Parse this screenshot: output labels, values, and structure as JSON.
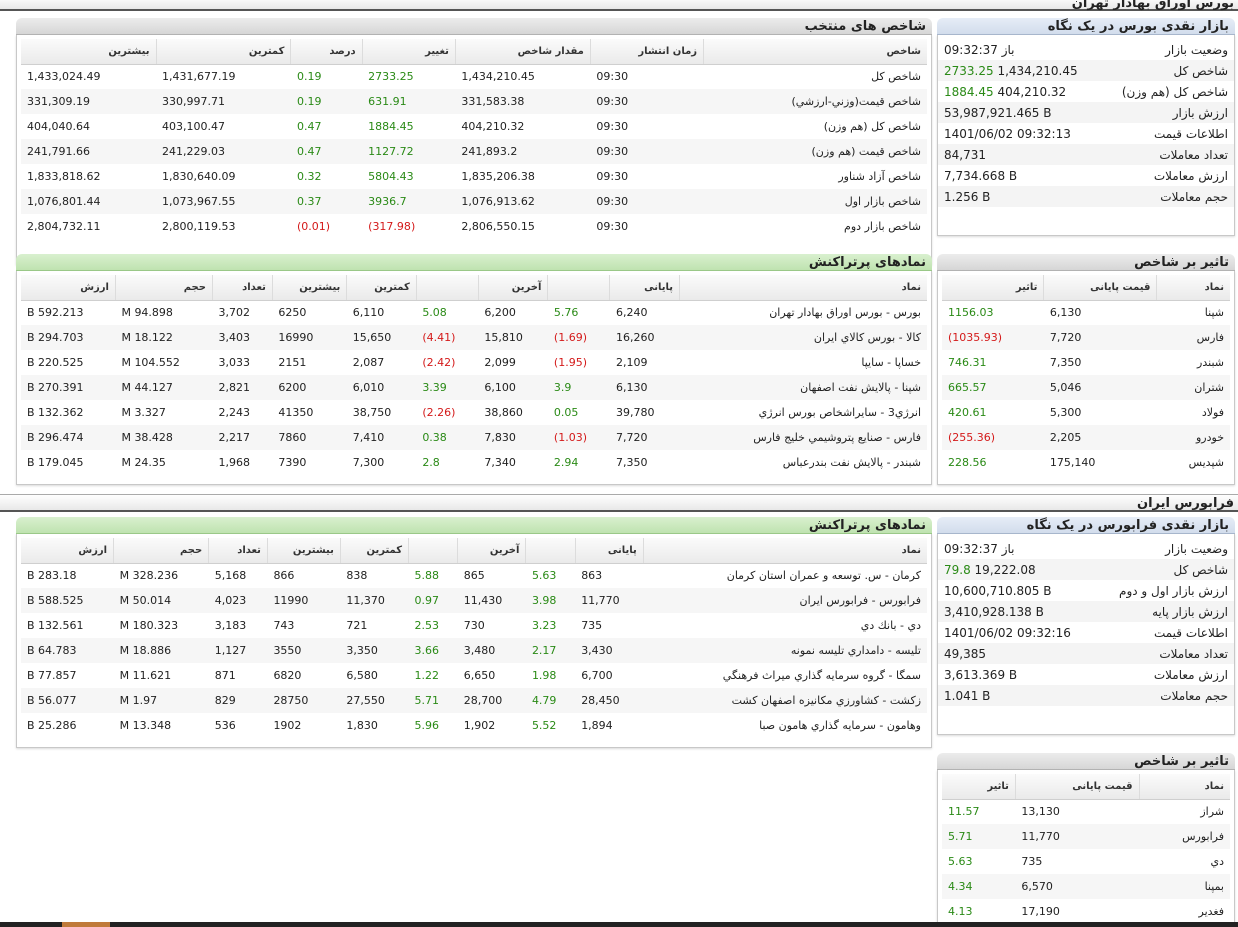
{
  "section_tehran": {
    "title": "بورس اوراق بهادار تهران"
  },
  "section_fara": {
    "title": "فرابورس ایران"
  },
  "tehran_glance": {
    "title": "بازار نقدی بورس در یک نگاه",
    "rows": [
      {
        "label": "وضعیت بازار",
        "value": "باز 09:32:37",
        "change": ""
      },
      {
        "label": "شاخص کل",
        "value": "1,434,210.45",
        "change": "2733.25"
      },
      {
        "label": "شاخص کل (هم وزن)",
        "value": "404,210.32",
        "change": "1884.45"
      },
      {
        "label": "ارزش بازار",
        "value": "53,987,921.465 B",
        "change": ""
      },
      {
        "label": "اطلاعات قیمت",
        "value": "1401/06/02 09:32:13",
        "change": ""
      },
      {
        "label": "تعداد معاملات",
        "value": "84,731",
        "change": ""
      },
      {
        "label": "ارزش معاملات",
        "value": "7,734.668 B",
        "change": ""
      },
      {
        "label": "حجم معاملات",
        "value": "1.256 B",
        "change": ""
      }
    ]
  },
  "selected_indices": {
    "title": "شاخص های منتخب",
    "headers": [
      "شاخص",
      "زمان انتشار",
      "مقدار شاخص",
      "تغییر",
      "درصد",
      "کمترین",
      "بیشترین"
    ],
    "rows": [
      {
        "name": "شاخص كل",
        "time": "09:30",
        "value": "1,434,210.45",
        "change": "2733.25",
        "percent": "0.19",
        "min": "1,431,677.19",
        "max": "1,433,024.49",
        "dir": "pos"
      },
      {
        "name": "شاخص قيمت(وزني-ارزشي)",
        "time": "09:30",
        "value": "331,583.38",
        "change": "631.91",
        "percent": "0.19",
        "min": "330,997.71",
        "max": "331,309.19",
        "dir": "pos"
      },
      {
        "name": "شاخص كل (هم وزن)",
        "time": "09:30",
        "value": "404,210.32",
        "change": "1884.45",
        "percent": "0.47",
        "min": "403,100.47",
        "max": "404,040.64",
        "dir": "pos"
      },
      {
        "name": "شاخص قيمت (هم وزن)",
        "time": "09:30",
        "value": "241,893.2",
        "change": "1127.72",
        "percent": "0.47",
        "min": "241,229.03",
        "max": "241,791.66",
        "dir": "pos"
      },
      {
        "name": "شاخص آزاد شناور",
        "time": "09:30",
        "value": "1,835,206.38",
        "change": "5804.43",
        "percent": "0.32",
        "min": "1,830,640.09",
        "max": "1,833,818.62",
        "dir": "pos"
      },
      {
        "name": "شاخص بازار اول",
        "time": "09:30",
        "value": "1,076,913.62",
        "change": "3936.7",
        "percent": "0.37",
        "min": "1,073,967.55",
        "max": "1,076,801.44",
        "dir": "pos"
      },
      {
        "name": "شاخص بازار دوم",
        "time": "09:30",
        "value": "2,806,550.15",
        "change": "(317.98)",
        "percent": "(0.01)",
        "min": "2,800,119.53",
        "max": "2,804,732.11",
        "dir": "neg"
      }
    ]
  },
  "tehran_impact": {
    "title": "تاثیر بر شاخص",
    "headers": [
      "نماد",
      "قیمت پایانی",
      "تاثیر"
    ],
    "rows": [
      {
        "symbol": "شپنا",
        "price": "6,130",
        "impact": "1156.03",
        "dir": "pos"
      },
      {
        "symbol": "فارس",
        "price": "7,720",
        "impact": "(1035.93)",
        "dir": "neg"
      },
      {
        "symbol": "شبندر",
        "price": "7,350",
        "impact": "746.31",
        "dir": "pos"
      },
      {
        "symbol": "شتران",
        "price": "5,046",
        "impact": "665.57",
        "dir": "pos"
      },
      {
        "symbol": "فولاد",
        "price": "5,300",
        "impact": "420.61",
        "dir": "pos"
      },
      {
        "symbol": "خودرو",
        "price": "2,205",
        "impact": "(255.36)",
        "dir": "neg"
      },
      {
        "symbol": "شپديس",
        "price": "175,140",
        "impact": "228.56",
        "dir": "pos"
      }
    ]
  },
  "tehran_top": {
    "title": "نمادهای پرتراکنش",
    "headers": [
      "نماد",
      "پایانی",
      "",
      "آخرین",
      "",
      "کمترین",
      "بیشترین",
      "تعداد",
      "حجم",
      "ارزش"
    ],
    "rows": [
      {
        "name": "بورس - بورس اوراق بهادار تهران",
        "close": "6,240",
        "close_pct": "5.76",
        "close_dir": "pos",
        "last": "6,200",
        "last_pct": "5.08",
        "last_dir": "pos",
        "min": "6,110",
        "max": "6250",
        "count": "3,702",
        "volume": "94.898 M",
        "value": "592.213 B"
      },
      {
        "name": "كالا - بورس كالاي ايران",
        "close": "16,260",
        "close_pct": "(1.69)",
        "close_dir": "neg",
        "last": "15,810",
        "last_pct": "(4.41)",
        "last_dir": "neg",
        "min": "15,650",
        "max": "16990",
        "count": "3,403",
        "volume": "18.122 M",
        "value": "294.703 B"
      },
      {
        "name": "خساپا - سايپا",
        "close": "2,109",
        "close_pct": "(1.95)",
        "close_dir": "neg",
        "last": "2,099",
        "last_pct": "(2.42)",
        "last_dir": "neg",
        "min": "2,087",
        "max": "2151",
        "count": "3,033",
        "volume": "104.552 M",
        "value": "220.525 B"
      },
      {
        "name": "شپنا - پالايش نفت اصفهان",
        "close": "6,130",
        "close_pct": "3.9",
        "close_dir": "pos",
        "last": "6,100",
        "last_pct": "3.39",
        "last_dir": "pos",
        "min": "6,010",
        "max": "6200",
        "count": "2,821",
        "volume": "44.127 M",
        "value": "270.391 B"
      },
      {
        "name": "انرژي3 - سايراشخاص بورس انرژي",
        "close": "39,780",
        "close_pct": "0.05",
        "close_dir": "pos",
        "last": "38,860",
        "last_pct": "(2.26)",
        "last_dir": "neg",
        "min": "38,750",
        "max": "41350",
        "count": "2,243",
        "volume": "3.327 M",
        "value": "132.362 B"
      },
      {
        "name": "فارس - صنايع پتروشيمي خليج فارس",
        "close": "7,720",
        "close_pct": "(1.03)",
        "close_dir": "neg",
        "last": "7,830",
        "last_pct": "0.38",
        "last_dir": "pos",
        "min": "7,410",
        "max": "7860",
        "count": "2,217",
        "volume": "38.428 M",
        "value": "296.474 B"
      },
      {
        "name": "شبندر - پالايش نفت بندرعباس",
        "close": "7,350",
        "close_pct": "2.94",
        "close_dir": "pos",
        "last": "7,340",
        "last_pct": "2.8",
        "last_dir": "pos",
        "min": "7,300",
        "max": "7390",
        "count": "1,968",
        "volume": "24.35 M",
        "value": "179.045 B"
      }
    ]
  },
  "fara_glance": {
    "title": "بازار نقدی فرابورس در یک نگاه",
    "rows": [
      {
        "label": "وضعیت بازار",
        "value": "باز 09:32:37",
        "change": ""
      },
      {
        "label": "شاخص کل",
        "value": "19,222.08",
        "change": "79.8"
      },
      {
        "label": "ارزش بازار اول و دوم",
        "value": "10,600,710.805 B",
        "change": ""
      },
      {
        "label": "ارزش بازار پایه",
        "value": "3,410,928.138 B",
        "change": ""
      },
      {
        "label": "اطلاعات قیمت",
        "value": "1401/06/02 09:32:16",
        "change": ""
      },
      {
        "label": "تعداد معاملات",
        "value": "49,385",
        "change": ""
      },
      {
        "label": "ارزش معاملات",
        "value": "3,613.369 B",
        "change": ""
      },
      {
        "label": "حجم معاملات",
        "value": "1.041 B",
        "change": ""
      }
    ]
  },
  "fara_top": {
    "title": "نمادهای پرتراکنش",
    "headers": [
      "نماد",
      "پایانی",
      "",
      "آخرین",
      "",
      "کمترین",
      "بیشترین",
      "تعداد",
      "حجم",
      "ارزش"
    ],
    "rows": [
      {
        "name": "كرمان - س. توسعه و عمران استان كرمان",
        "close": "863",
        "close_pct": "5.63",
        "close_dir": "pos",
        "last": "865",
        "last_pct": "5.88",
        "last_dir": "pos",
        "min": "838",
        "max": "866",
        "count": "5,168",
        "volume": "328.236 M",
        "value": "283.18 B"
      },
      {
        "name": "فرابورس - فرابورس ايران",
        "close": "11,770",
        "close_pct": "3.98",
        "close_dir": "pos",
        "last": "11,430",
        "last_pct": "0.97",
        "last_dir": "pos",
        "min": "11,370",
        "max": "11990",
        "count": "4,023",
        "volume": "50.014 M",
        "value": "588.525 B"
      },
      {
        "name": "دي - بانك دي",
        "close": "735",
        "close_pct": "3.23",
        "close_dir": "pos",
        "last": "730",
        "last_pct": "2.53",
        "last_dir": "pos",
        "min": "721",
        "max": "743",
        "count": "3,183",
        "volume": "180.323 M",
        "value": "132.561 B"
      },
      {
        "name": "تليسه - دامداري تليسه نمونه",
        "close": "3,430",
        "close_pct": "2.17",
        "close_dir": "pos",
        "last": "3,480",
        "last_pct": "3.66",
        "last_dir": "pos",
        "min": "3,350",
        "max": "3550",
        "count": "1,127",
        "volume": "18.886 M",
        "value": "64.783 B"
      },
      {
        "name": "سمگا - گروه سرمايه گذاري ميراث فرهنگي",
        "close": "6,700",
        "close_pct": "1.98",
        "close_dir": "pos",
        "last": "6,650",
        "last_pct": "1.22",
        "last_dir": "pos",
        "min": "6,580",
        "max": "6820",
        "count": "871",
        "volume": "11.621 M",
        "value": "77.857 B"
      },
      {
        "name": "زكشت - كشاورزي مكانيزه اصفهان كشت",
        "close": "28,450",
        "close_pct": "4.79",
        "close_dir": "pos",
        "last": "28,700",
        "last_pct": "5.71",
        "last_dir": "pos",
        "min": "27,550",
        "max": "28750",
        "count": "829",
        "volume": "1.97 M",
        "value": "56.077 B"
      },
      {
        "name": "وهامون - سرمايه گذاري هامون صبا",
        "close": "1,894",
        "close_pct": "5.52",
        "close_dir": "pos",
        "last": "1,902",
        "last_pct": "5.96",
        "last_dir": "pos",
        "min": "1,830",
        "max": "1902",
        "count": "536",
        "volume": "13.348 M",
        "value": "25.286 B"
      }
    ]
  },
  "fara_impact": {
    "title": "تاثیر بر شاخص",
    "headers": [
      "نماد",
      "قیمت پایانی",
      "تاثیر"
    ],
    "rows": [
      {
        "symbol": "شراز",
        "price": "13,130",
        "impact": "11.57",
        "dir": "pos"
      },
      {
        "symbol": "فرابورس",
        "price": "11,770",
        "impact": "5.71",
        "dir": "pos"
      },
      {
        "symbol": "دي",
        "price": "735",
        "impact": "5.63",
        "dir": "pos"
      },
      {
        "symbol": "بمپنا",
        "price": "6,570",
        "impact": "4.34",
        "dir": "pos"
      },
      {
        "symbol": "فغدير",
        "price": "17,190",
        "impact": "4.13",
        "dir": "pos"
      }
    ]
  }
}
